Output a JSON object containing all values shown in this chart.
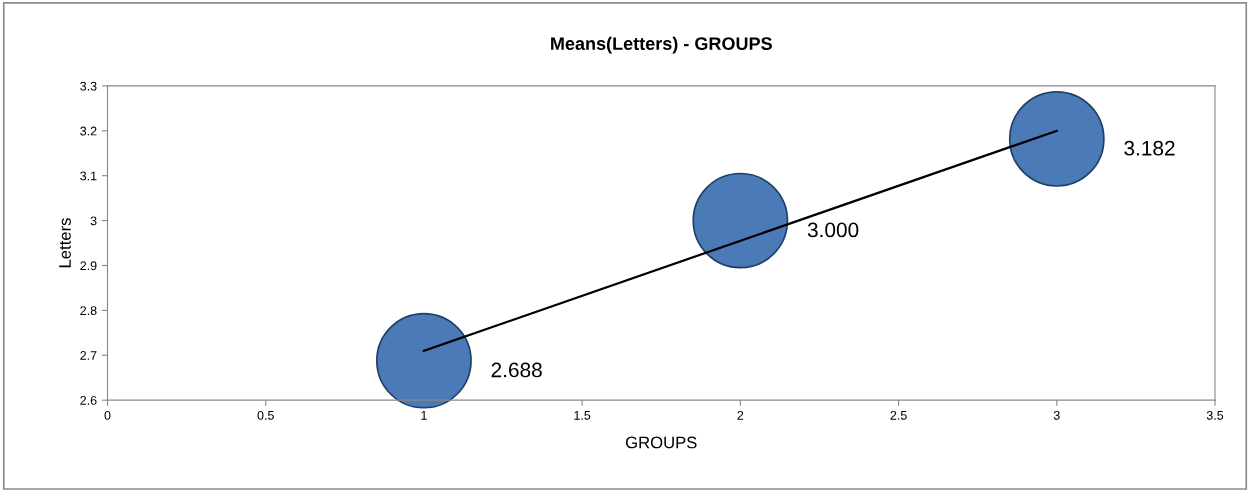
{
  "chart_data": {
    "type": "bubble",
    "title": "Means(Letters) - GROUPS",
    "xlabel": "GROUPS",
    "ylabel": "Letters",
    "xlim": [
      0,
      3.5
    ],
    "xticks": [
      0,
      0.5,
      1,
      1.5,
      2,
      2.5,
      3,
      3.5
    ],
    "ylim": [
      2.6,
      3.3
    ],
    "yticks": [
      2.6,
      2.7,
      2.8,
      2.9,
      3,
      3.1,
      3.2,
      3.3
    ],
    "grid": false,
    "legend": false,
    "series": [
      {
        "color": "#4a7bb7",
        "x": [
          1,
          2,
          3
        ],
        "values": [
          2.688,
          3.0,
          3.182
        ],
        "sizes": [
          1,
          1,
          1
        ],
        "value_labels": [
          "2.688",
          "3.000",
          "3.182"
        ]
      },
      {
        "type": "line",
        "color": "#000000",
        "x": [
          1,
          3
        ],
        "values": [
          2.71,
          3.2
        ]
      }
    ]
  }
}
